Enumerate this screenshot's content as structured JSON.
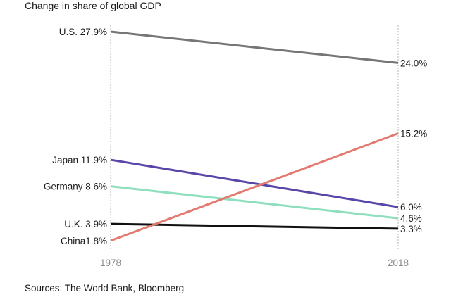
{
  "chart_data": {
    "type": "line",
    "title": "Change in share of global GDP",
    "x": [
      "1978",
      "2018"
    ],
    "ylim": [
      1.0,
      29.0
    ],
    "grid": false,
    "series": [
      {
        "name": "U.S.",
        "values": [
          27.9,
          24.0
        ],
        "color": "#767676",
        "start_label": "U.S. 27.9%",
        "end_label": "24.0%"
      },
      {
        "name": "Japan",
        "values": [
          11.9,
          6.0
        ],
        "color": "#5a46a8",
        "start_label": "Japan 11.9%",
        "end_label": "6.0%"
      },
      {
        "name": "Germany",
        "values": [
          8.6,
          4.6
        ],
        "color": "#8fdfbf",
        "start_label": "Germany 8.6%",
        "end_label": "4.6%"
      },
      {
        "name": "U.K.",
        "values": [
          3.9,
          3.3
        ],
        "color": "#111111",
        "start_label": "U.K. 3.9%",
        "end_label": "3.3%"
      },
      {
        "name": "China",
        "values": [
          1.8,
          15.2
        ],
        "color": "#e27a70",
        "start_label": "China1.8%",
        "end_label": "15.2%"
      }
    ],
    "source": "Sources: The World Bank, Bloomberg"
  }
}
